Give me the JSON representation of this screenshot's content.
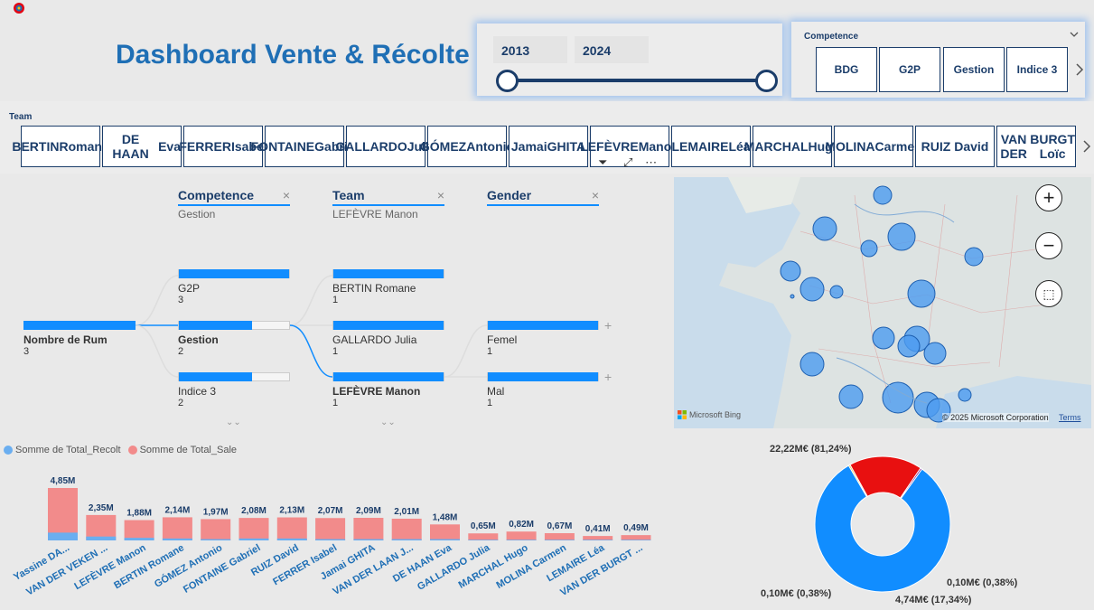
{
  "header": {
    "title": "Dashboard Vente & Récolte"
  },
  "year_slider": {
    "start": "2013",
    "end": "2024"
  },
  "competence_slicer": {
    "label": "Competence",
    "items": [
      "BDG",
      "G2P",
      "Gestion",
      "Indice 3"
    ]
  },
  "team_slicer": {
    "label": "Team",
    "items": [
      [
        "BERTIN",
        "Romane"
      ],
      [
        "DE HAAN",
        "Eva"
      ],
      [
        "FERRER",
        "Isabel"
      ],
      [
        "FONTAINE",
        "Gabriel"
      ],
      [
        "GALLARDO",
        "Julia"
      ],
      [
        "GÓMEZ",
        "Antonio"
      ],
      [
        "Jamai",
        "GHITA"
      ],
      [
        "LEFÈVRE",
        "Manon"
      ],
      [
        "LEMAIRE",
        "Léa"
      ],
      [
        "MARCHAL",
        "Hugo"
      ],
      [
        "MOLINA",
        "Carmen"
      ],
      [
        "RUIZ David",
        ""
      ],
      [
        "VAN DER",
        "BURGT Loïc"
      ]
    ]
  },
  "decomposition": {
    "levels": [
      {
        "head": "Competence",
        "sub": "Gestion"
      },
      {
        "head": "Team",
        "sub": "LEFÈVRE Manon"
      },
      {
        "head": "Gender",
        "sub": ""
      }
    ],
    "root": {
      "label": "Nombre de Rum",
      "value": "3"
    },
    "competence": [
      {
        "label": "G2P",
        "value": "3",
        "fill": 1.0
      },
      {
        "label": "Gestion",
        "value": "2",
        "fill": 0.667
      },
      {
        "label": "Indice 3",
        "value": "2",
        "fill": 0.667
      }
    ],
    "team": [
      {
        "label": "BERTIN Romane",
        "value": "1",
        "fill": 1.0
      },
      {
        "label": "GALLARDO Julia",
        "value": "1",
        "fill": 1.0
      },
      {
        "label": "LEFÈVRE Manon",
        "value": "1",
        "fill": 1.0
      }
    ],
    "gender": [
      {
        "label": "Femel",
        "value": "1",
        "fill": 1.0
      },
      {
        "label": "Mal",
        "value": "1",
        "fill": 1.0
      }
    ]
  },
  "map": {
    "attribution": "Microsoft Bing",
    "copyright": "© 2025 Microsoft Corporation",
    "terms": "Terms"
  },
  "chart_data": [
    {
      "type": "bar",
      "legend": [
        "Somme de Total_Recolt",
        "Somme de Total_Sale"
      ],
      "colors": [
        "#6aaef0",
        "#f28b8b"
      ],
      "categories": [
        "Yassine DA...",
        "VAN DER VEKEN ...",
        "LEFÈVRE Manon",
        "BERTIN Romane",
        "GÓMEZ Antonio",
        "FONTAINE Gabriel",
        "RUIZ David",
        "FERRER Isabel",
        "Jamai GHITA",
        "VAN DER LAAN J...",
        "DE HAAN Eva",
        "GALLARDO Julia",
        "MARCHAL Hugo",
        "MOLINA Carmen",
        "LEMAIRE Léa",
        "VAN DER BURGT ..."
      ],
      "values": [
        4.85,
        2.35,
        1.88,
        2.14,
        1.97,
        2.08,
        2.13,
        2.07,
        2.09,
        2.01,
        1.48,
        0.65,
        0.82,
        0.67,
        0.41,
        0.49
      ],
      "labels": [
        "4,85M",
        "2,35M",
        "1,88M",
        "2,14M",
        "1,97M",
        "2,08M",
        "2,13M",
        "2,07M",
        "2,09M",
        "2,01M",
        "1,48M",
        "0,65M",
        "0,82M",
        "0,67M",
        "0,41M",
        "0,49M"
      ],
      "recolt": [
        0.12,
        0.06,
        0.04,
        0.03,
        0.02,
        0.03,
        0.03,
        0.02,
        0.02,
        0.02,
        0.02,
        0.01,
        0.01,
        0.01,
        0.01,
        0.01
      ]
    },
    {
      "type": "pie",
      "slices": [
        {
          "value": 81.24,
          "label": "22,22M€ (81,24%)",
          "color": "#118dff"
        },
        {
          "value": 0.38,
          "label": "0,10M€ (0,38%)",
          "color": "#e8c547"
        },
        {
          "value": 17.34,
          "label": "4,74M€ (17,34%)",
          "color": "#e81010"
        },
        {
          "value": 0.38,
          "label": "0,10M€ (0,38%)",
          "color": "#6b007b"
        }
      ]
    }
  ]
}
